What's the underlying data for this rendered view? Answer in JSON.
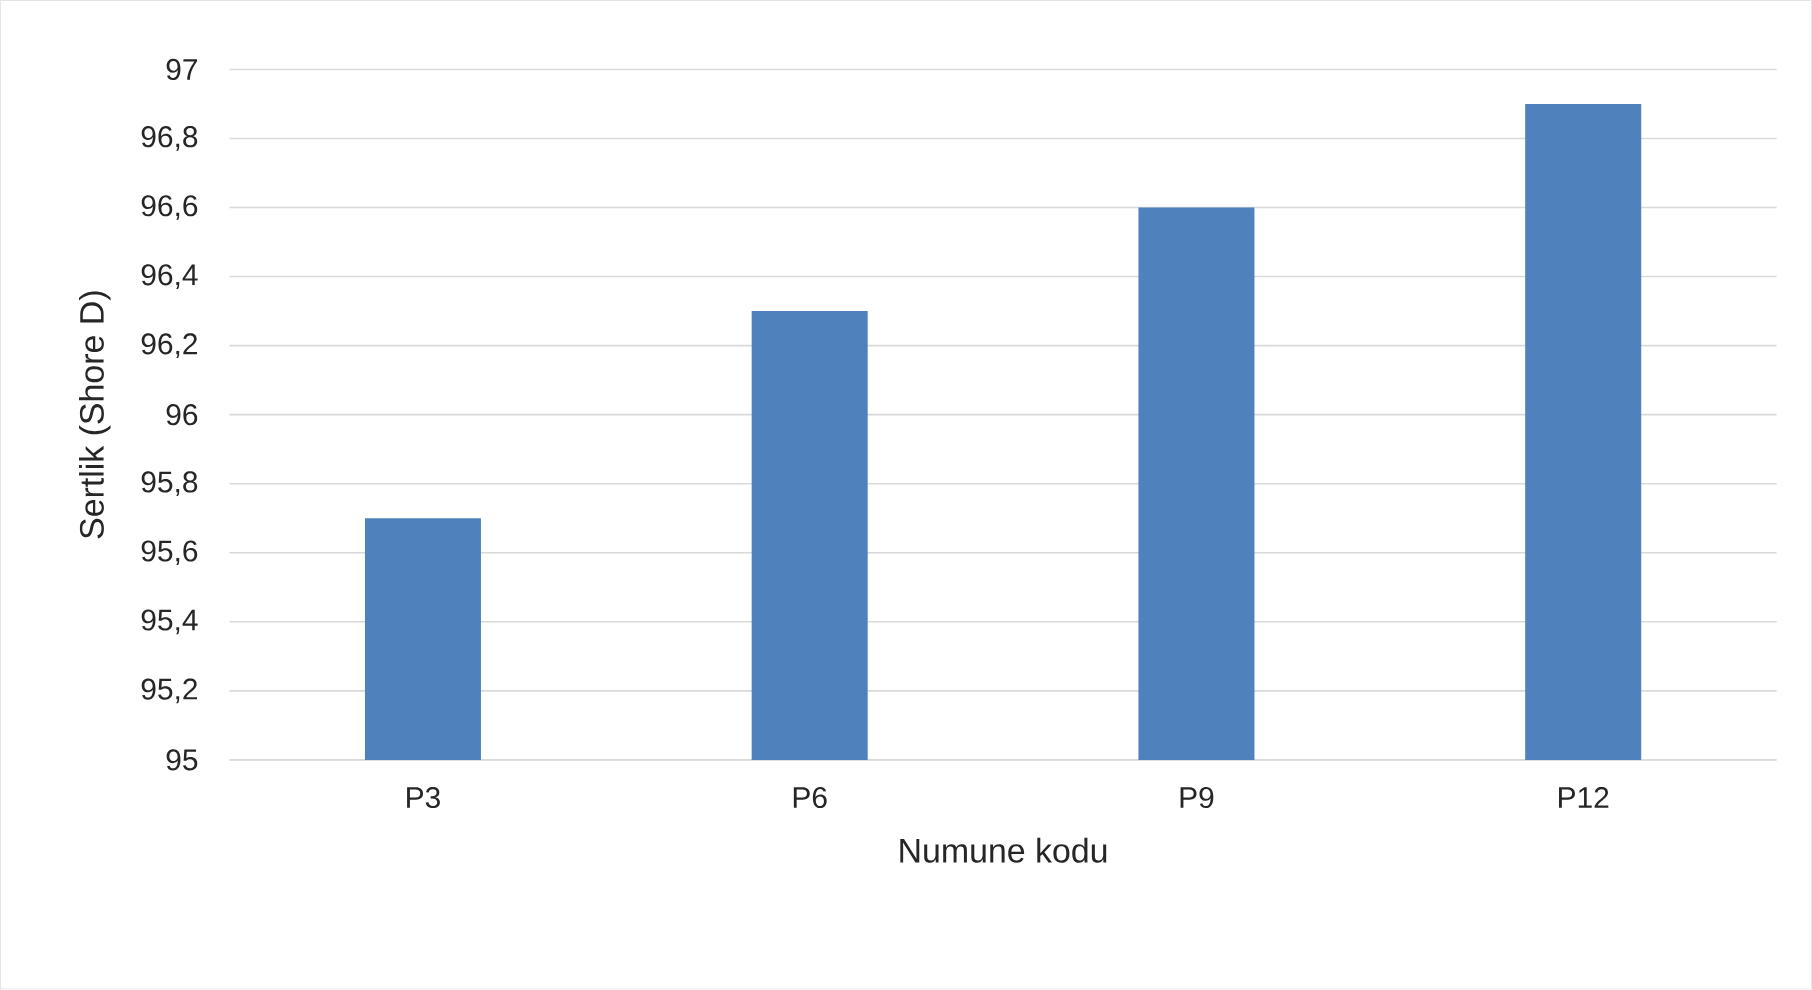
{
  "chart_data": {
    "type": "bar",
    "categories": [
      "P3",
      "P6",
      "P9",
      "P12"
    ],
    "values": [
      95.7,
      96.3,
      96.6,
      96.9
    ],
    "color": "#4f81bd",
    "xlabel": "Numune kodu",
    "ylabel": "Sertlik (Shore D)",
    "ylim": [
      95,
      97
    ],
    "yticks": [
      95,
      {
        "value": 95.2,
        "label": "95,2"
      },
      {
        "value": 95.4,
        "label": "95,4"
      },
      {
        "value": 95.6,
        "label": "95,6"
      },
      {
        "value": 95.8,
        "label": "95,8"
      },
      96,
      {
        "value": 96.2,
        "label": "96,2"
      },
      {
        "value": 96.4,
        "label": "96,4"
      },
      {
        "value": 96.6,
        "label": "96,6"
      },
      {
        "value": 96.8,
        "label": "96,8"
      },
      97
    ],
    "grid": "y"
  }
}
